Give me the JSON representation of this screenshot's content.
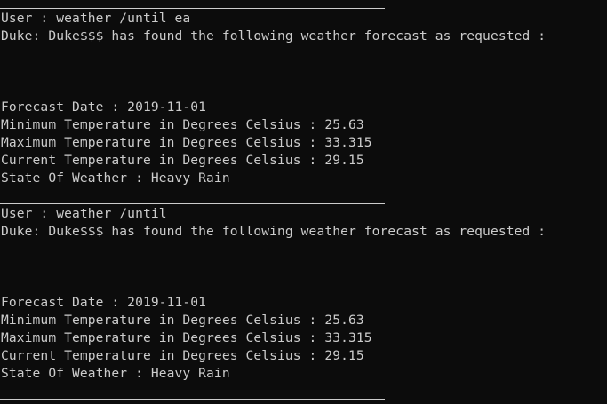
{
  "colors": {
    "background": "#0c0c0c",
    "text": "#cccccc"
  },
  "entries": [
    {
      "user_line": "User : weather /until ea",
      "duke_line": "Duke: Duke$$$ has found the following weather forecast as requested :",
      "forecast_date": "Forecast Date : 2019-11-01",
      "min_temp": "Minimum Temperature in Degrees Celsius : 25.63",
      "max_temp": "Maximum Temperature in Degrees Celsius : 33.315",
      "current_temp": "Current Temperature in Degrees Celsius : 29.15",
      "state": "State Of Weather : Heavy Rain"
    },
    {
      "user_line": "User : weather /until",
      "duke_line": "Duke: Duke$$$ has found the following weather forecast as requested :",
      "forecast_date": "Forecast Date : 2019-11-01",
      "min_temp": "Minimum Temperature in Degrees Celsius : 25.63",
      "max_temp": "Maximum Temperature in Degrees Celsius : 33.315",
      "current_temp": "Current Temperature in Degrees Celsius : 29.15",
      "state": "State Of Weather : Heavy Rain"
    }
  ]
}
